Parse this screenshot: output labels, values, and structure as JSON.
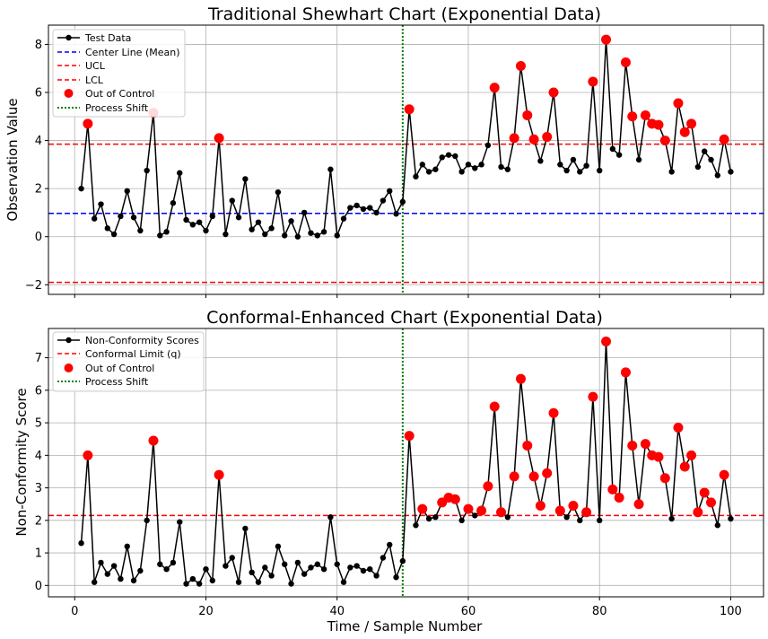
{
  "figure": {
    "shared_xlabel": "Time / Sample Number"
  },
  "chart_data": [
    {
      "type": "line",
      "title": "Traditional Shewhart Chart (Exponential Data)",
      "xlabel": "",
      "ylabel": "Observation Value",
      "xlim": [
        -4,
        105
      ],
      "ylim": [
        -2.4,
        8.8
      ],
      "x_ticks": [
        0,
        20,
        40,
        60,
        80,
        100
      ],
      "y_ticks": [
        -2,
        0,
        2,
        4,
        6,
        8
      ],
      "grid": true,
      "legend_position": "top-left",
      "legend": [
        "Test Data",
        "Center Line (Mean)",
        "UCL",
        "LCL",
        "Out of Control",
        "Process Shift"
      ],
      "series_name": "Test Data",
      "x": [
        1,
        2,
        3,
        4,
        5,
        6,
        7,
        8,
        9,
        10,
        11,
        12,
        13,
        14,
        15,
        16,
        17,
        18,
        19,
        20,
        21,
        22,
        23,
        24,
        25,
        26,
        27,
        28,
        29,
        30,
        31,
        32,
        33,
        34,
        35,
        36,
        37,
        38,
        39,
        40,
        41,
        42,
        43,
        44,
        45,
        46,
        47,
        48,
        49,
        50,
        51,
        52,
        53,
        54,
        55,
        56,
        57,
        58,
        59,
        60,
        61,
        62,
        63,
        64,
        65,
        66,
        67,
        68,
        69,
        70,
        71,
        72,
        73,
        74,
        75,
        76,
        77,
        78,
        79,
        80,
        81,
        82,
        83,
        84,
        85,
        86,
        87,
        88,
        89,
        90,
        91,
        92,
        93,
        94,
        95,
        96,
        97,
        98,
        99,
        100
      ],
      "values": [
        2.0,
        4.7,
        0.75,
        1.35,
        0.35,
        0.1,
        0.85,
        1.9,
        0.8,
        0.25,
        2.75,
        5.15,
        0.05,
        0.2,
        1.4,
        2.65,
        0.7,
        0.5,
        0.6,
        0.25,
        0.85,
        4.1,
        0.1,
        1.5,
        0.8,
        2.4,
        0.3,
        0.6,
        0.1,
        0.35,
        1.85,
        0.05,
        0.65,
        0.0,
        1.0,
        0.15,
        0.05,
        0.2,
        2.8,
        0.05,
        0.75,
        1.2,
        1.3,
        1.15,
        1.2,
        1.0,
        1.5,
        1.9,
        0.95,
        1.45,
        5.3,
        2.5,
        3.0,
        2.7,
        2.8,
        3.3,
        3.4,
        3.35,
        2.7,
        3.0,
        2.85,
        3.0,
        3.8,
        6.2,
        2.9,
        2.8,
        4.1,
        7.1,
        5.05,
        4.05,
        3.15,
        4.15,
        6.0,
        3.0,
        2.75,
        3.2,
        2.7,
        2.95,
        6.45,
        2.75,
        8.2,
        3.65,
        3.4,
        7.25,
        5.0,
        3.2,
        5.05,
        4.7,
        4.65,
        4.0,
        2.7,
        5.55,
        4.35,
        4.7,
        2.9,
        3.55,
        3.2,
        2.55,
        4.05,
        2.7
      ],
      "center_line": {
        "name": "Center Line (Mean)",
        "value": 0.97,
        "color": "#0000ff"
      },
      "ucl": {
        "name": "UCL",
        "value": 3.85,
        "color": "#ff0000"
      },
      "lcl": {
        "name": "LCL",
        "value": -1.9,
        "color": "#ff0000"
      },
      "process_shift_x": 50,
      "colors": {
        "line": "#000000",
        "out_of_control": "#ff0000",
        "shift": "#008000"
      }
    },
    {
      "type": "line",
      "title": "Conformal-Enhanced Chart (Exponential Data)",
      "xlabel": "Time / Sample Number",
      "ylabel": "Non-Conformity Score",
      "xlim": [
        -4,
        105
      ],
      "ylim": [
        -0.35,
        7.9
      ],
      "x_ticks": [
        0,
        20,
        40,
        60,
        80,
        100
      ],
      "y_ticks": [
        0,
        1,
        2,
        3,
        4,
        5,
        6,
        7
      ],
      "grid": true,
      "legend_position": "top-left",
      "legend": [
        "Non-Conformity Scores",
        "Conformal Limit (q)",
        "Out of Control",
        "Process Shift"
      ],
      "series_name": "Non-Conformity Scores",
      "x": [
        1,
        2,
        3,
        4,
        5,
        6,
        7,
        8,
        9,
        10,
        11,
        12,
        13,
        14,
        15,
        16,
        17,
        18,
        19,
        20,
        21,
        22,
        23,
        24,
        25,
        26,
        27,
        28,
        29,
        30,
        31,
        32,
        33,
        34,
        35,
        36,
        37,
        38,
        39,
        40,
        41,
        42,
        43,
        44,
        45,
        46,
        47,
        48,
        49,
        50,
        51,
        52,
        53,
        54,
        55,
        56,
        57,
        58,
        59,
        60,
        61,
        62,
        63,
        64,
        65,
        66,
        67,
        68,
        69,
        70,
        71,
        72,
        73,
        74,
        75,
        76,
        77,
        78,
        79,
        80,
        81,
        82,
        83,
        84,
        85,
        86,
        87,
        88,
        89,
        90,
        91,
        92,
        93,
        94,
        95,
        96,
        97,
        98,
        99,
        100
      ],
      "values": [
        1.3,
        4.0,
        0.1,
        0.7,
        0.35,
        0.6,
        0.2,
        1.2,
        0.15,
        0.45,
        2.0,
        4.45,
        0.65,
        0.5,
        0.7,
        1.95,
        0.05,
        0.2,
        0.05,
        0.5,
        0.15,
        3.4,
        0.6,
        0.85,
        0.1,
        1.75,
        0.4,
        0.1,
        0.55,
        0.3,
        1.2,
        0.65,
        0.05,
        0.7,
        0.35,
        0.55,
        0.65,
        0.5,
        2.1,
        0.65,
        0.1,
        0.55,
        0.6,
        0.45,
        0.5,
        0.3,
        0.85,
        1.25,
        0.25,
        0.75,
        4.6,
        1.85,
        2.35,
        2.05,
        2.1,
        2.55,
        2.7,
        2.65,
        2.0,
        2.35,
        2.15,
        2.3,
        3.05,
        5.5,
        2.25,
        2.1,
        3.35,
        6.35,
        4.3,
        3.35,
        2.45,
        3.45,
        5.3,
        2.3,
        2.1,
        2.45,
        2.0,
        2.25,
        5.8,
        2.0,
        7.5,
        2.95,
        2.7,
        6.55,
        4.3,
        2.5,
        4.35,
        4.0,
        3.95,
        3.3,
        2.05,
        4.85,
        3.65,
        4.0,
        2.25,
        2.85,
        2.55,
        1.85,
        3.4,
        2.05
      ],
      "conformal_limit": {
        "name": "Conformal Limit (q)",
        "value": 2.15,
        "color": "#ff0000"
      },
      "process_shift_x": 50,
      "colors": {
        "line": "#000000",
        "out_of_control": "#ff0000",
        "shift": "#008000"
      }
    }
  ]
}
